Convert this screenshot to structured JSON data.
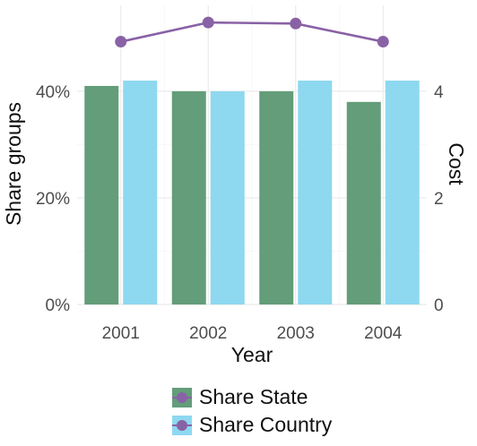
{
  "chart_data": {
    "type": "bar",
    "categories": [
      "2001",
      "2002",
      "2003",
      "2004"
    ],
    "series": [
      {
        "name": "Share State",
        "kind": "bar",
        "axis": "left",
        "color": "#639D79",
        "values": [
          0.41,
          0.4,
          0.4,
          0.38
        ]
      },
      {
        "name": "Share Country",
        "kind": "bar",
        "axis": "left",
        "color": "#8ED8F0",
        "values": [
          0.42,
          0.4,
          0.42,
          0.42
        ]
      },
      {
        "name": "",
        "kind": "line",
        "axis": "right",
        "color": "#8962A6",
        "values": [
          4.93,
          5.29,
          5.27,
          4.93
        ]
      }
    ],
    "xlabel": "Year",
    "ylabel": "Share groups",
    "y2label": "Cost",
    "ylim": [
      0,
      0.42
    ],
    "y2lim": [
      0,
      4.2
    ],
    "yticks": [
      "0%",
      "20%",
      "40%"
    ],
    "y2ticks": [
      "0",
      "2",
      "4"
    ],
    "grid": true,
    "legend_position": "bottom",
    "legend": [
      {
        "label": "Share State",
        "fill": "#639D79",
        "marker": "#8962A6"
      },
      {
        "label": "Share Country",
        "fill": "#8ED8F0",
        "marker": "#8962A6"
      }
    ]
  }
}
